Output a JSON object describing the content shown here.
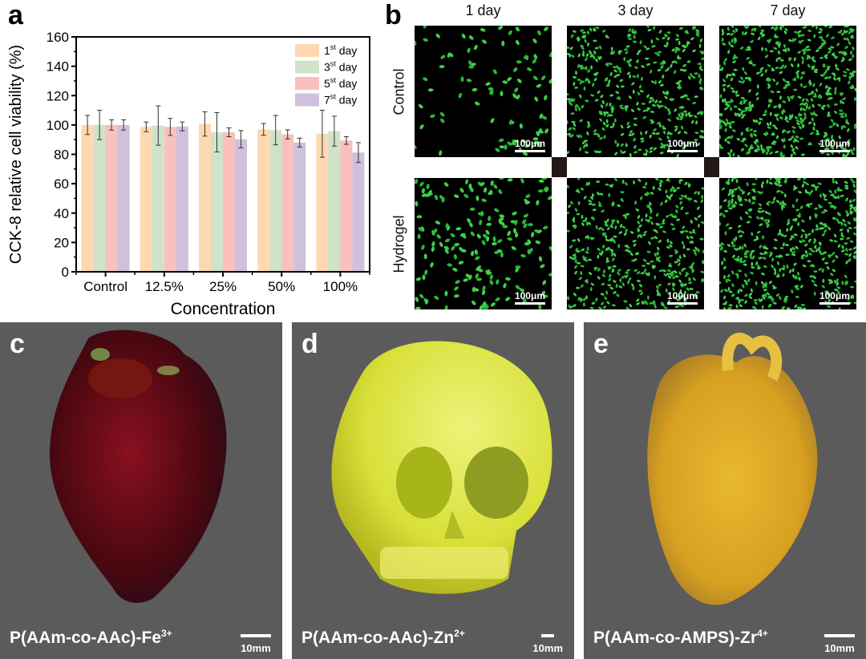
{
  "panels": {
    "a": "a",
    "b": "b",
    "c": "c",
    "d": "d",
    "e": "e"
  },
  "chart_data": {
    "type": "bar",
    "title": "",
    "xlabel": "Concentration",
    "ylabel": "CCK-8 relative cell viability (%)",
    "ylim": [
      0,
      160
    ],
    "yticks": [
      0,
      20,
      40,
      60,
      80,
      100,
      120,
      140,
      160
    ],
    "categories": [
      "Control",
      "12.5%",
      "25%",
      "50%",
      "100%"
    ],
    "legend_position": "top-right",
    "series": [
      {
        "name": "1",
        "sup": "st",
        "suffix": " day",
        "color": "#fdd8b0",
        "values": [
          100,
          98.7,
          100.7,
          97,
          94
        ],
        "errors": [
          6.5,
          3.3,
          8.3,
          4,
          16
        ]
      },
      {
        "name": "3",
        "sup": "st",
        "suffix": " day",
        "color": "#cfe3c9",
        "values": [
          100,
          99.6,
          95,
          96.5,
          95.8
        ],
        "errors": [
          10,
          13.4,
          13.4,
          10,
          10.2
        ]
      },
      {
        "name": "5",
        "sup": "st",
        "suffix": " day",
        "color": "#f9c0bc",
        "values": [
          100,
          98.7,
          95,
          93.6,
          89.4
        ],
        "errors": [
          3.5,
          5.8,
          3,
          3.1,
          2.6
        ]
      },
      {
        "name": "7",
        "sup": "st",
        "suffix": " day",
        "color": "#cfc0db",
        "values": [
          100,
          99,
          90.3,
          88,
          81.2
        ],
        "errors": [
          3.5,
          3,
          5.9,
          3,
          6.8
        ]
      }
    ]
  },
  "microscopy": {
    "columns": [
      "1 day",
      "3 day",
      "7 day"
    ],
    "rows": [
      "Control",
      "Hydrogel"
    ],
    "scale_bar": "100μm"
  },
  "photos": [
    {
      "label": "c",
      "caption": "P(AAm-co-AAc)-Fe",
      "sup": "3+",
      "scale": "10mm"
    },
    {
      "label": "d",
      "caption": "P(AAm-co-AAc)-Zn",
      "sup": "2+",
      "scale": "10mm"
    },
    {
      "label": "e",
      "caption": "P(AAm-co-AMPS)-Zr",
      "sup": "4+",
      "scale": "10mm"
    }
  ]
}
